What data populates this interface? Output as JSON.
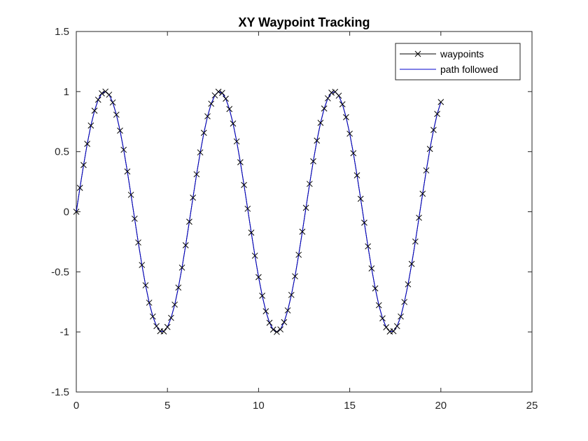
{
  "chart_data": {
    "type": "line",
    "title": "XY Waypoint Tracking",
    "xlabel": "",
    "ylabel": "",
    "xlim": [
      0,
      25
    ],
    "ylim": [
      -1.5,
      1.5
    ],
    "x_ticks": [
      0,
      5,
      10,
      15,
      20,
      25
    ],
    "y_ticks": [
      -1.5,
      -1,
      -0.5,
      0,
      0.5,
      1,
      1.5
    ],
    "x_tick_labels": [
      "0",
      "5",
      "10",
      "15",
      "20",
      "25"
    ],
    "y_tick_labels": [
      "-1.5",
      "-1",
      "-0.5",
      "0",
      "0.5",
      "1",
      "1.5"
    ],
    "grid": false,
    "legend_position": "top-right",
    "series": [
      {
        "name": "waypoints",
        "color": "#000000",
        "marker": "x",
        "x": [
          0,
          0.2,
          0.4,
          0.6,
          0.8,
          1.0,
          1.2,
          1.4,
          1.6,
          1.8,
          2.0,
          2.2,
          2.4,
          2.6,
          2.8,
          3.0,
          3.2,
          3.4,
          3.6,
          3.8,
          4.0,
          4.2,
          4.4,
          4.6,
          4.8,
          5.0,
          5.2,
          5.4,
          5.6,
          5.8,
          6.0,
          6.2,
          6.4,
          6.6,
          6.8,
          7.0,
          7.2,
          7.4,
          7.6,
          7.8,
          8.0,
          8.2,
          8.4,
          8.6,
          8.8,
          9.0,
          9.2,
          9.4,
          9.6,
          9.8,
          10.0,
          10.2,
          10.4,
          10.6,
          10.8,
          11.0,
          11.2,
          11.4,
          11.6,
          11.8,
          12.0,
          12.2,
          12.4,
          12.6,
          12.8,
          13.0,
          13.2,
          13.4,
          13.6,
          13.8,
          14.0,
          14.2,
          14.4,
          14.6,
          14.8,
          15.0,
          15.2,
          15.4,
          15.6,
          15.8,
          16.0,
          16.2,
          16.4,
          16.6,
          16.8,
          17.0,
          17.2,
          17.4,
          17.6,
          17.8,
          18.0,
          18.2,
          18.4,
          18.6,
          18.8,
          19.0,
          19.2,
          19.4,
          19.6,
          19.8,
          20.0
        ],
        "y": [
          0,
          0.199,
          0.389,
          0.565,
          0.717,
          0.841,
          0.932,
          0.985,
          1.0,
          0.974,
          0.909,
          0.808,
          0.675,
          0.516,
          0.335,
          0.141,
          -0.058,
          -0.256,
          -0.443,
          -0.612,
          -0.757,
          -0.872,
          -0.952,
          -0.994,
          -0.996,
          -0.959,
          -0.883,
          -0.773,
          -0.631,
          -0.465,
          -0.279,
          -0.083,
          0.117,
          0.312,
          0.494,
          0.657,
          0.794,
          0.899,
          0.968,
          0.999,
          0.989,
          0.941,
          0.855,
          0.734,
          0.585,
          0.412,
          0.223,
          0.025,
          -0.174,
          -0.366,
          -0.544,
          -0.699,
          -0.828,
          -0.924,
          -0.981,
          -1.0,
          -0.979,
          -0.919,
          -0.821,
          -0.692,
          -0.537,
          -0.358,
          -0.166,
          0.033,
          0.232,
          0.42,
          0.592,
          0.74,
          0.859,
          0.944,
          0.991,
          0.998,
          0.966,
          0.894,
          0.787,
          0.65,
          0.487,
          0.303,
          0.108,
          -0.091,
          -0.288,
          -0.472,
          -0.638,
          -0.778,
          -0.887,
          -0.961,
          -0.997,
          -0.994,
          -0.952,
          -0.872,
          -0.751,
          -0.604,
          -0.434,
          -0.248,
          -0.05,
          0.15,
          0.344,
          0.523,
          0.681,
          0.814,
          0.913
        ]
      },
      {
        "name": "path followed",
        "color": "#0000cc",
        "marker": "none",
        "x": [
          0,
          0.2,
          0.4,
          0.6,
          0.8,
          1.0,
          1.2,
          1.4,
          1.6,
          1.8,
          2.0,
          2.2,
          2.4,
          2.6,
          2.8,
          3.0,
          3.2,
          3.4,
          3.6,
          3.8,
          4.0,
          4.2,
          4.4,
          4.6,
          4.8,
          5.0,
          5.2,
          5.4,
          5.6,
          5.8,
          6.0,
          6.2,
          6.4,
          6.6,
          6.8,
          7.0,
          7.2,
          7.4,
          7.6,
          7.8,
          8.0,
          8.2,
          8.4,
          8.6,
          8.8,
          9.0,
          9.2,
          9.4,
          9.6,
          9.8,
          10.0,
          10.2,
          10.4,
          10.6,
          10.8,
          11.0,
          11.2,
          11.4,
          11.6,
          11.8,
          12.0,
          12.2,
          12.4,
          12.6,
          12.8,
          13.0,
          13.2,
          13.4,
          13.6,
          13.8,
          14.0,
          14.2,
          14.4,
          14.6,
          14.8,
          15.0,
          15.2,
          15.4,
          15.6,
          15.8,
          16.0,
          16.2,
          16.4,
          16.6,
          16.8,
          17.0,
          17.2,
          17.4,
          17.6,
          17.8,
          18.0,
          18.2,
          18.4,
          18.6,
          18.8,
          19.0,
          19.2,
          19.4,
          19.6,
          19.8,
          20.0
        ],
        "y": [
          0,
          0.199,
          0.389,
          0.565,
          0.717,
          0.841,
          0.932,
          0.985,
          1.0,
          0.974,
          0.909,
          0.808,
          0.675,
          0.516,
          0.335,
          0.141,
          -0.058,
          -0.256,
          -0.443,
          -0.612,
          -0.757,
          -0.872,
          -0.952,
          -0.994,
          -0.996,
          -0.959,
          -0.883,
          -0.773,
          -0.631,
          -0.465,
          -0.279,
          -0.083,
          0.117,
          0.312,
          0.494,
          0.657,
          0.794,
          0.899,
          0.968,
          0.999,
          0.989,
          0.941,
          0.855,
          0.734,
          0.585,
          0.412,
          0.223,
          0.025,
          -0.174,
          -0.366,
          -0.544,
          -0.699,
          -0.828,
          -0.924,
          -0.981,
          -1.0,
          -0.979,
          -0.919,
          -0.821,
          -0.692,
          -0.537,
          -0.358,
          -0.166,
          0.033,
          0.232,
          0.42,
          0.592,
          0.74,
          0.859,
          0.944,
          0.991,
          0.998,
          0.966,
          0.894,
          0.787,
          0.65,
          0.487,
          0.303,
          0.108,
          -0.091,
          -0.288,
          -0.472,
          -0.638,
          -0.778,
          -0.887,
          -0.961,
          -0.997,
          -0.994,
          -0.952,
          -0.872,
          -0.751,
          -0.604,
          -0.434,
          -0.248,
          -0.05,
          0.15,
          0.344,
          0.523,
          0.681,
          0.814,
          0.913
        ]
      }
    ]
  }
}
